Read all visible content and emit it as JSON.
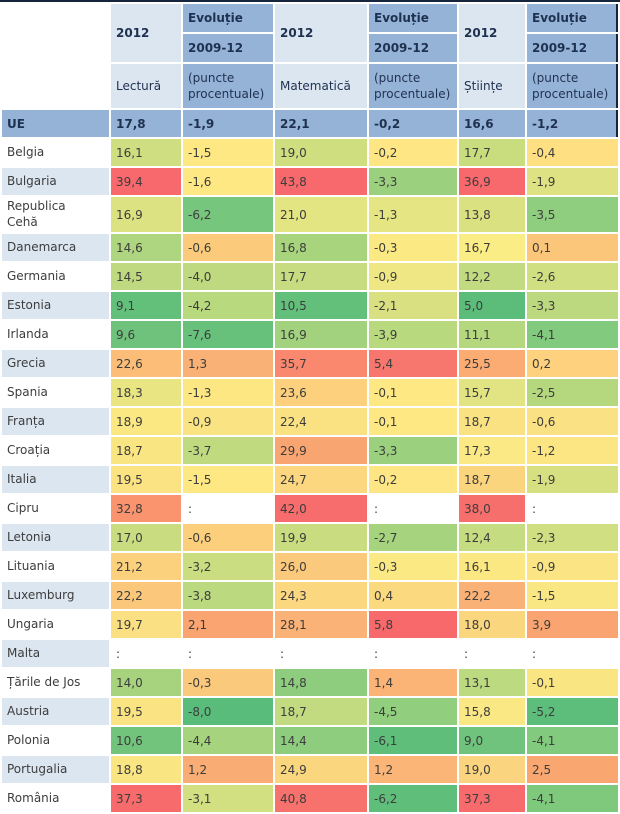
{
  "colors": {
    "header_light_blue": "#dce6f1",
    "header_mid_blue": "#95b3d7",
    "header_text": "#1f3150",
    "body_text": "#3d3d3d",
    "border_dark": "#15253b",
    "scale_min_green": "#63be7b",
    "scale_mid_yellow": "#ffeb84",
    "scale_max_red": "#f8696b"
  },
  "table": {
    "headers": {
      "year": "2012",
      "evolution": "Evoluție",
      "period": "2009-12",
      "reading": "Lectură",
      "math": "Matematică",
      "science": "Științe",
      "points": "(puncte procentuale)"
    },
    "ue": {
      "label": "UE",
      "values": [
        "17,8",
        "-1,9",
        "22,1",
        "-0,2",
        "16,6",
        "-1,2"
      ]
    },
    "rows": [
      {
        "label": "Belgia",
        "shaded": false,
        "cells": [
          {
            "v": "16,1",
            "bg": "#cede80"
          },
          {
            "v": "-1,5",
            "bg": "#fee884"
          },
          {
            "v": "19,0",
            "bg": "#cfdf80"
          },
          {
            "v": "-0,2",
            "bg": "#fee684"
          },
          {
            "v": "17,7",
            "bg": "#c9dd7f"
          },
          {
            "v": "-0,4",
            "bg": "#fedf82"
          }
        ]
      },
      {
        "label": "Bulgaria",
        "shaded": true,
        "cells": [
          {
            "v": "39,4",
            "bg": "#f7696c"
          },
          {
            "v": "-1,6",
            "bg": "#fee884"
          },
          {
            "v": "43,8",
            "bg": "#f7696c"
          },
          {
            "v": "-3,3",
            "bg": "#9bd07e"
          },
          {
            "v": "36,9",
            "bg": "#f7696c"
          },
          {
            "v": "-1,9",
            "bg": "#dfe282"
          }
        ]
      },
      {
        "label": "Republica Cehă",
        "shaded": false,
        "cells": [
          {
            "v": "16,9",
            "bg": "#dce281"
          },
          {
            "v": "-6,2",
            "bg": "#77c67d"
          },
          {
            "v": "21,0",
            "bg": "#e3e482"
          },
          {
            "v": "-1,3",
            "bg": "#e6e583"
          },
          {
            "v": "13,8",
            "bg": "#d9e181"
          },
          {
            "v": "-3,5",
            "bg": "#8fce7e"
          }
        ]
      },
      {
        "label": "Danemarca",
        "shaded": true,
        "cells": [
          {
            "v": "14,6",
            "bg": "#aed57f"
          },
          {
            "v": "-0,6",
            "bg": "#fbcb7b"
          },
          {
            "v": "16,8",
            "bg": "#a8d47e"
          },
          {
            "v": "-0,3",
            "bg": "#fbe983"
          },
          {
            "v": "16,7",
            "bg": "#fbed85"
          },
          {
            "v": "0,1",
            "bg": "#fbc57a"
          }
        ]
      },
      {
        "label": "Germania",
        "shaded": false,
        "cells": [
          {
            "v": "14,5",
            "bg": "#bed97f"
          },
          {
            "v": "-4,0",
            "bg": "#bed97f"
          },
          {
            "v": "17,7",
            "bg": "#c7dc80"
          },
          {
            "v": "-0,9",
            "bg": "#efe783"
          },
          {
            "v": "12,2",
            "bg": "#c3db80"
          },
          {
            "v": "-2,6",
            "bg": "#cfdf81"
          }
        ]
      },
      {
        "label": "Estonia",
        "shaded": true,
        "cells": [
          {
            "v": "9,1",
            "bg": "#63c07b"
          },
          {
            "v": "-4,2",
            "bg": "#b9d97f"
          },
          {
            "v": "10,5",
            "bg": "#63c07b"
          },
          {
            "v": "-2,1",
            "bg": "#d8e081"
          },
          {
            "v": "5,0",
            "bg": "#5cbd7a"
          },
          {
            "v": "-3,3",
            "bg": "#bcd97f"
          }
        ]
      },
      {
        "label": "Irlanda",
        "shaded": false,
        "cells": [
          {
            "v": "9,6",
            "bg": "#6ec27c"
          },
          {
            "v": "-7,6",
            "bg": "#68c17b"
          },
          {
            "v": "16,9",
            "bg": "#a3d27e"
          },
          {
            "v": "-3,9",
            "bg": "#b9d97f"
          },
          {
            "v": "11,1",
            "bg": "#b5d87f"
          },
          {
            "v": "-4,1",
            "bg": "#82ca7d"
          }
        ]
      },
      {
        "label": "Grecia",
        "shaded": true,
        "cells": [
          {
            "v": "22,6",
            "bg": "#fbbd78"
          },
          {
            "v": "1,3",
            "bg": "#f9b175"
          },
          {
            "v": "35,7",
            "bg": "#f9886e"
          },
          {
            "v": "5,4",
            "bg": "#f7766e"
          },
          {
            "v": "25,5",
            "bg": "#faac73"
          },
          {
            "v": "0,2",
            "bg": "#fdd17d"
          }
        ]
      },
      {
        "label": "Spania",
        "shaded": false,
        "cells": [
          {
            "v": "18,3",
            "bg": "#e9e583"
          },
          {
            "v": "-1,3",
            "bg": "#fde783"
          },
          {
            "v": "23,6",
            "bg": "#fcd07c"
          },
          {
            "v": "-0,1",
            "bg": "#fee884"
          },
          {
            "v": "15,7",
            "bg": "#e2e382"
          },
          {
            "v": "-2,5",
            "bg": "#b5d87f"
          }
        ]
      },
      {
        "label": "Franța",
        "shaded": true,
        "cells": [
          {
            "v": "18,9",
            "bg": "#fbe883"
          },
          {
            "v": "-0,9",
            "bg": "#f9e383"
          },
          {
            "v": "22,4",
            "bg": "#fae283"
          },
          {
            "v": "-0,1",
            "bg": "#fee884"
          },
          {
            "v": "18,7",
            "bg": "#fae283"
          },
          {
            "v": "-0,6",
            "bg": "#fae183"
          }
        ]
      },
      {
        "label": "Croația",
        "shaded": false,
        "cells": [
          {
            "v": "18,7",
            "bg": "#fae583"
          },
          {
            "v": "-3,7",
            "bg": "#c0da80"
          },
          {
            "v": "29,9",
            "bg": "#f9a572"
          },
          {
            "v": "-3,3",
            "bg": "#9bd07e"
          },
          {
            "v": "17,3",
            "bg": "#fbe985"
          },
          {
            "v": "-1,2",
            "bg": "#fce683"
          }
        ]
      },
      {
        "label": "Italia",
        "shaded": true,
        "cells": [
          {
            "v": "19,5",
            "bg": "#fbe283"
          },
          {
            "v": "-1,5",
            "bg": "#fee884"
          },
          {
            "v": "24,7",
            "bg": "#fcd77f"
          },
          {
            "v": "-0,2",
            "bg": "#fee684"
          },
          {
            "v": "18,7",
            "bg": "#fbd47e"
          },
          {
            "v": "-1,9",
            "bg": "#d7e081"
          }
        ]
      },
      {
        "label": "Cipru",
        "shaded": false,
        "cells": [
          {
            "v": "32,8",
            "bg": "#f9946f"
          },
          {
            "v": ":",
            "bg": "#ffffff"
          },
          {
            "v": "42,0",
            "bg": "#f76c6c"
          },
          {
            "v": ":",
            "bg": "#ffffff"
          },
          {
            "v": "38,0",
            "bg": "#f76f6d"
          },
          {
            "v": ":",
            "bg": "#ffffff"
          }
        ]
      },
      {
        "label": "Letonia",
        "shaded": true,
        "cells": [
          {
            "v": "17,0",
            "bg": "#c9dd80"
          },
          {
            "v": "-0,6",
            "bg": "#fbcf7c"
          },
          {
            "v": "19,9",
            "bg": "#c9dd80"
          },
          {
            "v": "-2,7",
            "bg": "#a6d37e"
          },
          {
            "v": "12,4",
            "bg": "#c6dc80"
          },
          {
            "v": "-2,3",
            "bg": "#cfdf81"
          }
        ]
      },
      {
        "label": "Lituania",
        "shaded": false,
        "cells": [
          {
            "v": "21,2",
            "bg": "#fbd17d"
          },
          {
            "v": "-3,2",
            "bg": "#cadd80"
          },
          {
            "v": "26,0",
            "bg": "#fbc97b"
          },
          {
            "v": "-0,3",
            "bg": "#fbea84"
          },
          {
            "v": "16,1",
            "bg": "#fbe883"
          },
          {
            "v": "-0,9",
            "bg": "#fae483"
          }
        ]
      },
      {
        "label": "Luxemburg",
        "shaded": true,
        "cells": [
          {
            "v": "22,2",
            "bg": "#fbc77a"
          },
          {
            "v": "-3,8",
            "bg": "#bbd97f"
          },
          {
            "v": "24,3",
            "bg": "#fbd77f"
          },
          {
            "v": "0,4",
            "bg": "#fbd97f"
          },
          {
            "v": "22,2",
            "bg": "#fab175"
          },
          {
            "v": "-1,5",
            "bg": "#f9e783"
          }
        ]
      },
      {
        "label": "Ungaria",
        "shaded": false,
        "cells": [
          {
            "v": "19,7",
            "bg": "#fae082"
          },
          {
            "v": "2,1",
            "bg": "#f9a471"
          },
          {
            "v": "28,1",
            "bg": "#fab276"
          },
          {
            "v": "5,8",
            "bg": "#f7696b"
          },
          {
            "v": "18,0",
            "bg": "#fad77f"
          },
          {
            "v": "3,9",
            "bg": "#f9a471"
          }
        ]
      },
      {
        "label": "Malta",
        "shaded": true,
        "cells": [
          {
            "v": ":",
            "bg": "#ffffff"
          },
          {
            "v": ":",
            "bg": "#ffffff"
          },
          {
            "v": ":",
            "bg": "#ffffff"
          },
          {
            "v": ":",
            "bg": "#ffffff"
          },
          {
            "v": ":",
            "bg": "#ffffff"
          },
          {
            "v": ":",
            "bg": "#ffffff"
          }
        ]
      },
      {
        "label": "Țările de Jos",
        "shaded": false,
        "cells": [
          {
            "v": "14,0",
            "bg": "#a7d37e"
          },
          {
            "v": "-0,3",
            "bg": "#fbc97b"
          },
          {
            "v": "14,8",
            "bg": "#8ecd7d"
          },
          {
            "v": "1,4",
            "bg": "#fbb376"
          },
          {
            "v": "13,1",
            "bg": "#bcda7f"
          },
          {
            "v": "-0,1",
            "bg": "#fae583"
          }
        ]
      },
      {
        "label": "Austria",
        "shaded": true,
        "cells": [
          {
            "v": "19,5",
            "bg": "#fae383"
          },
          {
            "v": "-8,0",
            "bg": "#5abc7a"
          },
          {
            "v": "18,7",
            "bg": "#c2db80"
          },
          {
            "v": "-4,5",
            "bg": "#91ce7d"
          },
          {
            "v": "15,8",
            "bg": "#fae884"
          },
          {
            "v": "-5,2",
            "bg": "#5dbd7a"
          }
        ]
      },
      {
        "label": "Polonia",
        "shaded": false,
        "cells": [
          {
            "v": "10,6",
            "bg": "#72c47c"
          },
          {
            "v": "-4,4",
            "bg": "#a6d37e"
          },
          {
            "v": "14,4",
            "bg": "#8ecd7d"
          },
          {
            "v": "-6,1",
            "bg": "#5ebe7a"
          },
          {
            "v": "9,0",
            "bg": "#6fc37c"
          },
          {
            "v": "-4,1",
            "bg": "#82ca7d"
          }
        ]
      },
      {
        "label": "Portugalia",
        "shaded": true,
        "cells": [
          {
            "v": "18,8",
            "bg": "#fae583"
          },
          {
            "v": "1,2",
            "bg": "#f9ac73"
          },
          {
            "v": "24,9",
            "bg": "#fad67e"
          },
          {
            "v": "1,2",
            "bg": "#fbb577"
          },
          {
            "v": "19,0",
            "bg": "#fad47e"
          },
          {
            "v": "2,5",
            "bg": "#f9a671"
          }
        ]
      },
      {
        "label": "România",
        "shaded": false,
        "cells": [
          {
            "v": "37,3",
            "bg": "#f76b6c"
          },
          {
            "v": "-3,1",
            "bg": "#d2e081"
          },
          {
            "v": "40,8",
            "bg": "#f7726d"
          },
          {
            "v": "-6,2",
            "bg": "#5fbe7a"
          },
          {
            "v": "37,3",
            "bg": "#f76b6c"
          },
          {
            "v": "-4,1",
            "bg": "#7fc97d"
          }
        ]
      }
    ]
  }
}
